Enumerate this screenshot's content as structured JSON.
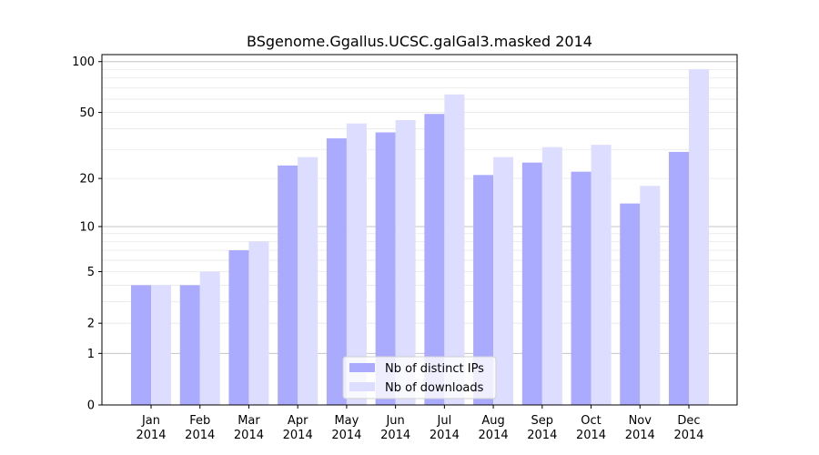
{
  "chart_data": {
    "type": "bar",
    "title": "BSgenome.Ggallus.UCSC.galGal3.masked 2014",
    "xlabel": "",
    "ylabel": "",
    "yscale": "log(1+y)",
    "ylim": [
      0,
      110
    ],
    "yticks": [
      0,
      1,
      2,
      5,
      10,
      20,
      50,
      100
    ],
    "ytick_labels": [
      "0",
      "1",
      "2",
      "5",
      "10",
      "20",
      "50",
      "100"
    ],
    "categories": [
      "Jan\n2014",
      "Feb\n2014",
      "Mar\n2014",
      "Apr\n2014",
      "May\n2014",
      "Jun\n2014",
      "Jul\n2014",
      "Aug\n2014",
      "Sep\n2014",
      "Oct\n2014",
      "Nov\n2014",
      "Dec\n2014"
    ],
    "category_month": [
      "Jan",
      "Feb",
      "Mar",
      "Apr",
      "May",
      "Jun",
      "Jul",
      "Aug",
      "Sep",
      "Oct",
      "Nov",
      "Dec"
    ],
    "category_year": "2014",
    "series": [
      {
        "name": "Nb of distinct IPs",
        "color": "#aaaaff",
        "values": [
          4,
          4,
          7,
          24,
          35,
          38,
          49,
          21,
          25,
          22,
          14,
          29
        ]
      },
      {
        "name": "Nb of downloads",
        "color": "#ddddff",
        "values": [
          4,
          5,
          8,
          27,
          43,
          45,
          64,
          27,
          31,
          32,
          18,
          90
        ]
      }
    ],
    "grid": true,
    "legend_position": "bottom-center"
  }
}
